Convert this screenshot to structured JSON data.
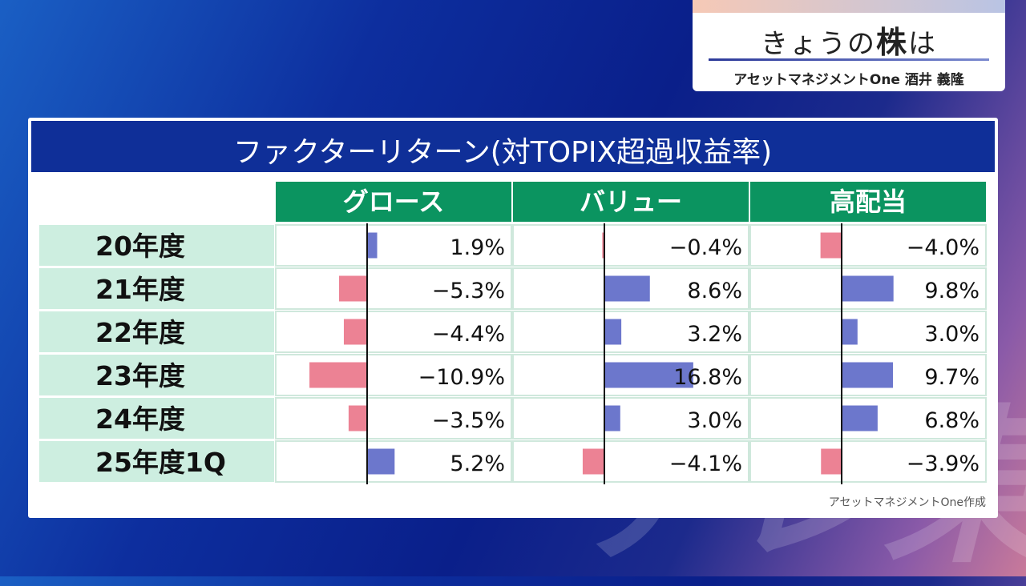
{
  "header": {
    "title_prefix": "きょうの",
    "title_strong": "株",
    "title_suffix": "は",
    "subtitle": "アセットマネジメントOne 酒井 義隆"
  },
  "chart_data": {
    "type": "table",
    "title": "ファクターリターン(対TOPIX超過収益率)",
    "columns": [
      "グロース",
      "バリュー",
      "高配当"
    ],
    "rows": [
      "20年度",
      "21年度",
      "22年度",
      "23年度",
      "24年度",
      "25年度1Q"
    ],
    "series": [
      {
        "name": "グロース",
        "values": [
          1.9,
          -5.3,
          -4.4,
          -10.9,
          -3.5,
          5.2
        ]
      },
      {
        "name": "バリュー",
        "values": [
          -0.4,
          8.6,
          3.2,
          16.8,
          3.0,
          -4.1
        ]
      },
      {
        "name": "高配当",
        "values": [
          -4.0,
          9.8,
          3.0,
          9.7,
          6.8,
          -3.9
        ]
      }
    ],
    "value_labels": [
      [
        "1.9%",
        "−0.4%",
        "−4.0%"
      ],
      [
        "−5.3%",
        "8.6%",
        "9.8%"
      ],
      [
        "−4.4%",
        "3.2%",
        "3.0%"
      ],
      [
        "−10.9%",
        "16.8%",
        "9.7%"
      ],
      [
        "−3.5%",
        "3.0%",
        "6.8%"
      ],
      [
        "5.2%",
        "−4.1%",
        "−3.9%"
      ]
    ],
    "unit": "%",
    "colors": {
      "positive": "#6c77cc",
      "negative": "#ec8294",
      "header": "#0b9460",
      "row_label": "#cdeee0",
      "title_bar": "#0f2f98"
    }
  },
  "credit": "アセットマネジメントOne作成",
  "watermark": "テレ東"
}
